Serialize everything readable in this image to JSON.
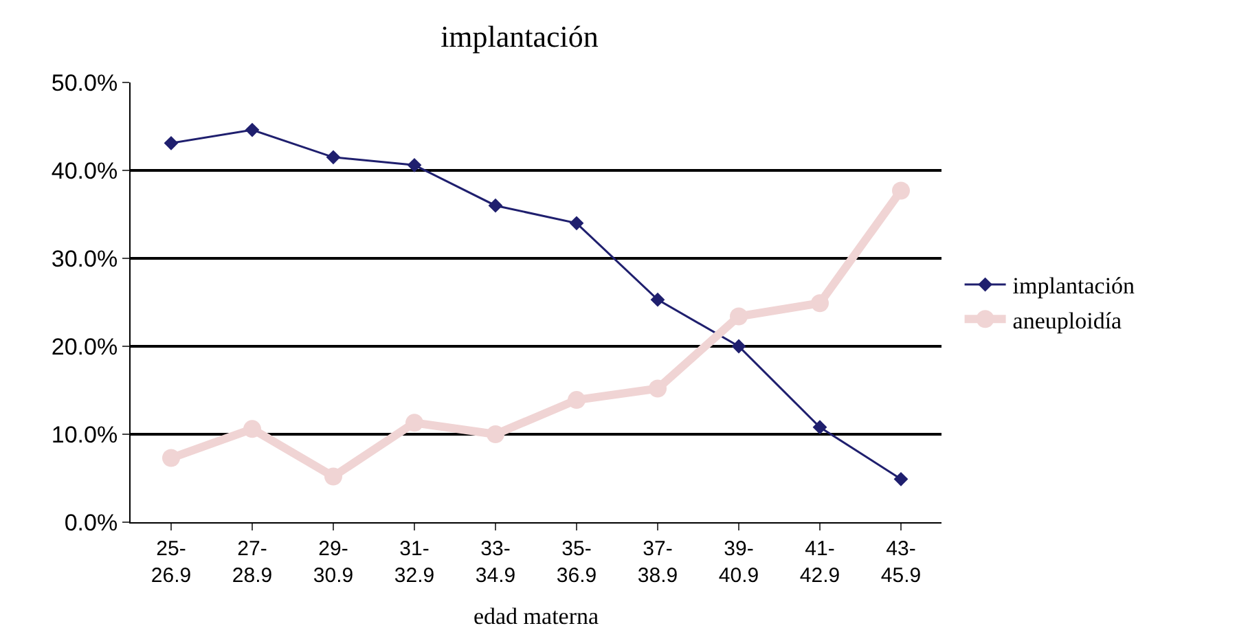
{
  "chart_data": {
    "type": "line",
    "title": "implantación",
    "xlabel": "edad materna",
    "categories": [
      "25-\n26.9",
      "27-\n28.9",
      "29-\n30.9",
      "31-\n32.9",
      "33-\n34.9",
      "35-\n36.9",
      "37-\n38.9",
      "39-\n40.9",
      "41-\n42.9",
      "43-\n45.9"
    ],
    "series": [
      {
        "name": "implantación",
        "color": "#1f1f6e",
        "marker": "diamond",
        "values": [
          43.1,
          44.6,
          41.5,
          40.6,
          36.0,
          34.0,
          25.3,
          20.0,
          10.8,
          4.9
        ]
      },
      {
        "name": "aneuploidía",
        "color": "#f0d4d4",
        "marker": "circle",
        "values": [
          7.3,
          10.6,
          5.2,
          11.3,
          10.0,
          13.9,
          15.2,
          23.4,
          24.9,
          37.7
        ]
      }
    ],
    "ylim": [
      0,
      50
    ],
    "yticks": [
      {
        "value": 0,
        "label": "0.0%"
      },
      {
        "value": 10,
        "label": "10.0%"
      },
      {
        "value": 20,
        "label": "20.0%"
      },
      {
        "value": 30,
        "label": "30.0%"
      },
      {
        "value": 40,
        "label": "40.0%"
      },
      {
        "value": 50,
        "label": "50.0%"
      }
    ],
    "grid": "y",
    "legend": "right"
  }
}
